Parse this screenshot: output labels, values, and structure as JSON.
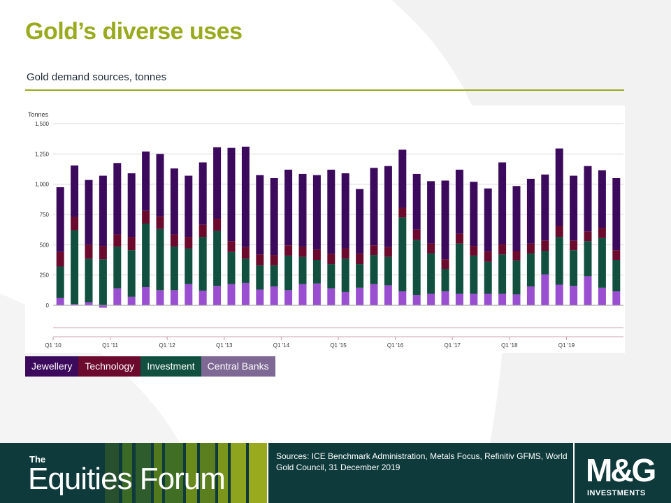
{
  "slide": {
    "title": "Gold’s diverse uses",
    "subtitle": "Gold demand sources, tonnes"
  },
  "colors": {
    "accent": "#9aaa1e",
    "footer_bg": "#0f3a3c",
    "jewellery": "#3b0a5c",
    "technology": "#6b0a2c",
    "investment": "#11503e",
    "central_banks": "#9a4fd0"
  },
  "legend": [
    {
      "label": "Jewellery",
      "color": "#3b0a5c"
    },
    {
      "label": "Technology",
      "color": "#6b0a2c"
    },
    {
      "label": "Investment",
      "color": "#11503e"
    },
    {
      "label": "Central Banks",
      "color": "#7e6894"
    }
  ],
  "chart_data": {
    "type": "bar",
    "stacked": true,
    "ylabel": "Tonnes",
    "ylim": [
      -250,
      1500
    ],
    "yticks": [
      0,
      250,
      500,
      750,
      "1,000",
      "1,250",
      "1,500"
    ],
    "ytick_labels": [
      "0",
      "250",
      "500",
      "750",
      "1,000",
      "1,250",
      "1,500"
    ],
    "x_tick_labels": [
      "Q1 '10",
      "Q1 '11",
      "Q1 '12",
      "Q1 '13",
      "Q1 '14",
      "Q1 '15",
      "Q1 '16",
      "Q1 '17",
      "Q1 '18",
      "Q1 '19"
    ],
    "categories_count": 40,
    "series": [
      {
        "name": "Central Banks",
        "values": [
          60,
          10,
          25,
          -20,
          140,
          70,
          150,
          125,
          125,
          175,
          120,
          160,
          175,
          185,
          130,
          155,
          125,
          175,
          180,
          140,
          110,
          145,
          175,
          165,
          115,
          85,
          95,
          115,
          95,
          95,
          95,
          95,
          90,
          155,
          255,
          170,
          160,
          240,
          145,
          115
        ]
      },
      {
        "name": "Investment",
        "values": [
          260,
          610,
          360,
          380,
          345,
          385,
          525,
          505,
          360,
          295,
          445,
          455,
          265,
          200,
          200,
          175,
          285,
          225,
          195,
          200,
          275,
          195,
          240,
          235,
          610,
          455,
          335,
          185,
          415,
          315,
          265,
          325,
          280,
          275,
          195,
          395,
          295,
          290,
          410,
          260
        ]
      },
      {
        "name": "Technology",
        "values": [
          120,
          110,
          115,
          110,
          100,
          110,
          105,
          105,
          100,
          95,
          100,
          100,
          90,
          95,
          90,
          85,
          85,
          85,
          85,
          85,
          85,
          85,
          80,
          80,
          80,
          85,
          80,
          80,
          80,
          80,
          85,
          85,
          80,
          80,
          85,
          90,
          80,
          80,
          85,
          80
        ]
      },
      {
        "name": "Jewellery",
        "values": [
          535,
          425,
          535,
          580,
          590,
          525,
          490,
          515,
          545,
          505,
          515,
          590,
          770,
          830,
          655,
          635,
          625,
          600,
          615,
          695,
          620,
          535,
          640,
          670,
          480,
          460,
          515,
          650,
          530,
          530,
          520,
          675,
          535,
          535,
          545,
          640,
          535,
          540,
          475,
          595
        ]
      }
    ]
  },
  "footer": {
    "the": "The",
    "brand": "Equities Forum",
    "sources": "Sources: ICE Benchmark Administration, Metals Focus, Refinitiv GFMS, World Gold Council, 31 December 2019",
    "logo_main": "M&G",
    "logo_sub": "INVESTMENTS"
  }
}
